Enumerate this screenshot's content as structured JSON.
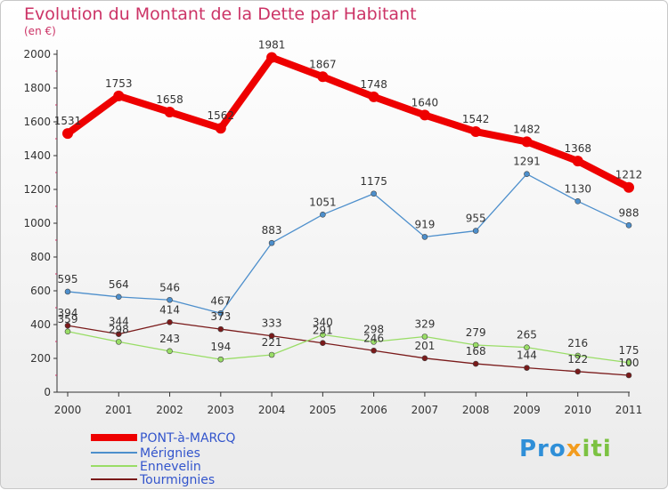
{
  "chart_data": {
    "type": "line",
    "title": "Evolution du Montant de la Dette par Habitant",
    "subtitle": "(en €)",
    "categories": [
      "2000",
      "2001",
      "2002",
      "2003",
      "2004",
      "2005",
      "2006",
      "2007",
      "2008",
      "2009",
      "2010",
      "2011"
    ],
    "ylim": [
      0,
      2000
    ],
    "yticks": [
      0,
      200,
      400,
      600,
      800,
      1000,
      1200,
      1400,
      1600,
      1800,
      2000
    ],
    "grid": false,
    "legend_position": "bottom-left",
    "series": [
      {
        "name": "PONT-à-MARCQ",
        "color": "#ee0000",
        "values": [
          1531,
          1753,
          1658,
          1562,
          1981,
          1867,
          1748,
          1640,
          1542,
          1482,
          1368,
          1212
        ]
      },
      {
        "name": "Mérignies",
        "color": "#4d8fcc",
        "values": [
          595,
          564,
          546,
          467,
          883,
          1051,
          1175,
          919,
          955,
          1291,
          1130,
          988
        ]
      },
      {
        "name": "Ennevelin",
        "color": "#99dd66",
        "values": [
          359,
          298,
          243,
          194,
          221,
          340,
          298,
          329,
          279,
          265,
          216,
          175
        ]
      },
      {
        "name": "Tourmignies",
        "color": "#7a1a1a",
        "values": [
          394,
          344,
          414,
          373,
          333,
          291,
          246,
          201,
          168,
          144,
          122,
          100
        ]
      }
    ]
  },
  "logo_text": "Proxiti",
  "logo_parts": [
    "Pro",
    "x",
    "iti"
  ]
}
